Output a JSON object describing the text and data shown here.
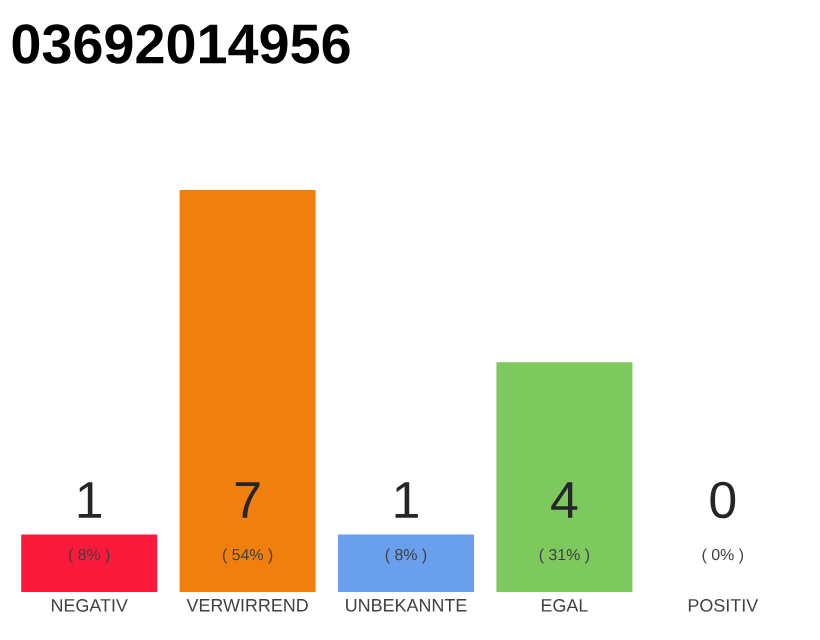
{
  "chart_data": {
    "type": "bar",
    "title": "03692014956",
    "categories": [
      "NEGATIV",
      "VERWIRREND",
      "UNBEKANNTE",
      "EGAL",
      "POSITIV"
    ],
    "values": [
      1,
      7,
      1,
      4,
      0
    ],
    "colors": [
      "#fb1a3b",
      "#f17f0d",
      "#6a9fec",
      "#7dc95e",
      "#d9d9d9"
    ],
    "data_labels": true,
    "annotations": [
      "( 8% )",
      "( 54% )",
      "( 8% )",
      "( 31% )",
      "( 0% )"
    ]
  }
}
